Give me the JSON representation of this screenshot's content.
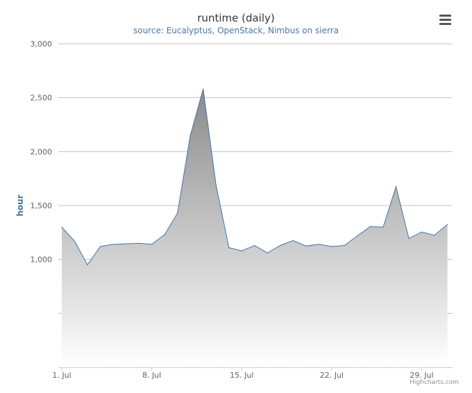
{
  "chart_data": {
    "type": "area",
    "title": "runtime (daily)",
    "subtitle": "source: Eucalyptus, OpenStack, Nimbus on sierra",
    "ylabel": "hour",
    "xlabel": "",
    "ylim": [
      0,
      3000
    ],
    "y_ticks": [
      {
        "value": 3000,
        "label": "3,000"
      },
      {
        "value": 2500,
        "label": "2,500"
      },
      {
        "value": 2000,
        "label": "2,000"
      },
      {
        "value": 1500,
        "label": "1,500"
      },
      {
        "value": 1000,
        "label": "1,000"
      },
      {
        "value": 500,
        "label": ""
      }
    ],
    "x_ticks": [
      {
        "day": 1,
        "label": "1. Jul"
      },
      {
        "day": 8,
        "label": "8. Jul"
      },
      {
        "day": 15,
        "label": "15. Jul"
      },
      {
        "day": 22,
        "label": "22. Jul"
      },
      {
        "day": 29,
        "label": "29. Jul"
      }
    ],
    "x_range": [
      1,
      31.4
    ],
    "grid": true,
    "legend": "none",
    "series": [
      {
        "x": [
          1,
          2,
          3,
          4,
          5,
          6,
          7,
          8,
          9,
          10,
          11,
          12,
          13,
          14,
          15,
          16,
          17,
          18,
          19,
          20,
          21,
          22,
          23,
          24,
          25,
          26,
          27,
          28,
          29,
          30,
          31
        ],
        "values": [
          1300,
          1170,
          950,
          1120,
          1140,
          1145,
          1150,
          1140,
          1230,
          1430,
          2150,
          2580,
          1690,
          1110,
          1080,
          1130,
          1060,
          1130,
          1175,
          1125,
          1140,
          1120,
          1130,
          1220,
          1305,
          1300,
          1675,
          1195,
          1255,
          1225,
          1325
        ]
      }
    ],
    "colors": {
      "line": "#4572a7",
      "fill_top": "#8a8a8a",
      "fill_bottom": "#ffffff",
      "grid": "#c0c0c0",
      "axis": "#c0d0e0",
      "subtitle": "#4d759e",
      "ylabel": "#4d759e"
    }
  },
  "ui": {
    "menu_icon": "hamburger-menu-icon",
    "credits": "Highcharts.com"
  }
}
